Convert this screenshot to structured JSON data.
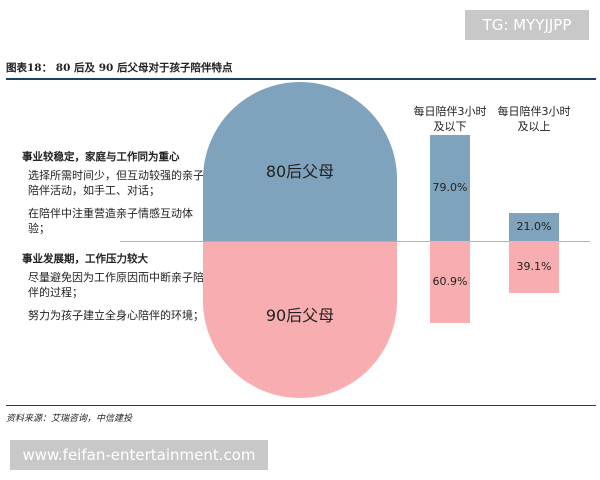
{
  "watermark_top": "TG: MYYJJPP",
  "watermark_bottom": "www.feifan-entertainment.com",
  "source": "资料来源：艾瑞咨询，中信建投",
  "left_text": {
    "group1_heading": "事业较稳定，家庭与工作同为重心",
    "group1_items": [
      "选择所需时间少，但互动较强的亲子陪伴活动，如手工、对话；",
      "在陪伴中注重营造亲子情感互动体验；"
    ],
    "group2_heading": "事业发展期，工作压力较大",
    "group2_items": [
      "尽量避免因为工作原因而中断亲子陪伴的过程；",
      "努力为孩子建立全身心陪伴的环境；"
    ]
  },
  "chart_data": {
    "type": "bar",
    "title": "图表18：  80 后及 90 后父母对于孩子陪伴特点",
    "categories": [
      "每日陪伴3小时及以下",
      "每日陪伴3小时及以上"
    ],
    "series": [
      {
        "name": "80后父母",
        "values": [
          79.0,
          21.0
        ],
        "labels": [
          "79.0%",
          "21.0%"
        ],
        "color": "#7fa3bd"
      },
      {
        "name": "90后父母",
        "values": [
          60.9,
          39.1
        ],
        "labels": [
          "60.9%",
          "39.1%"
        ],
        "color": "#f8aeb1"
      }
    ],
    "orientation": "diverging-vertical"
  }
}
